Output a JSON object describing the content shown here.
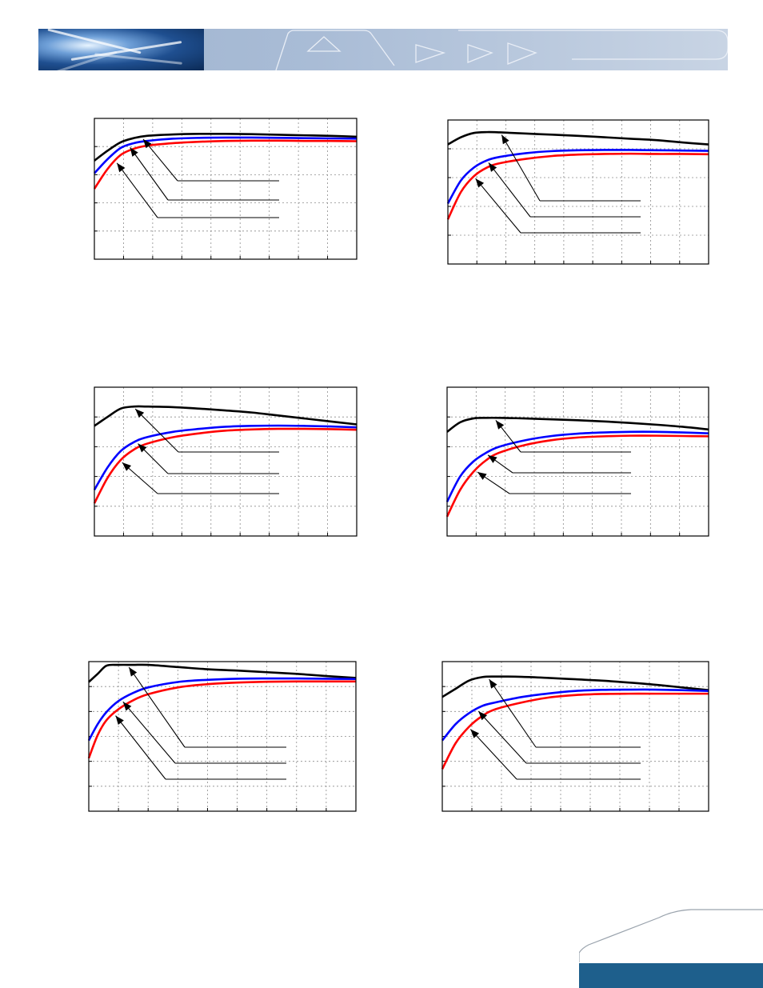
{
  "brand": {
    "accent": "#1e5f8c",
    "banner": "#a9bcd6"
  },
  "series_colors": {
    "black": "#000000",
    "blue": "#0000ff",
    "red": "#ff0000"
  },
  "chart_data": [
    {
      "type": "line",
      "xlim": [
        0,
        10
      ],
      "ylim": [
        0,
        5
      ],
      "grid": true,
      "series": [
        {
          "name": "black",
          "color": "#000000",
          "x": [
            0,
            0.5,
            1,
            1.5,
            2,
            3,
            4,
            5,
            6,
            7,
            8,
            9,
            10
          ],
          "y": [
            3.5,
            3.85,
            4.15,
            4.3,
            4.38,
            4.43,
            4.45,
            4.45,
            4.44,
            4.42,
            4.4,
            4.38,
            4.35
          ]
        },
        {
          "name": "blue",
          "color": "#0000ff",
          "x": [
            0,
            0.5,
            1,
            1.5,
            2,
            3,
            4,
            5,
            6,
            7,
            8,
            9,
            10
          ],
          "y": [
            3.05,
            3.55,
            3.95,
            4.12,
            4.2,
            4.28,
            4.31,
            4.32,
            4.32,
            4.31,
            4.3,
            4.29,
            4.28
          ]
        },
        {
          "name": "red",
          "color": "#ff0000",
          "x": [
            0,
            0.5,
            1,
            1.5,
            2,
            3,
            4,
            5,
            6,
            7,
            8,
            9,
            10
          ],
          "y": [
            2.5,
            3.2,
            3.7,
            3.92,
            4.03,
            4.12,
            4.17,
            4.2,
            4.21,
            4.21,
            4.2,
            4.2,
            4.19
          ]
        }
      ]
    },
    {
      "type": "line",
      "xlim": [
        0,
        10
      ],
      "ylim": [
        0,
        5
      ],
      "grid": true,
      "series": [
        {
          "name": "black",
          "color": "#000000",
          "x": [
            0,
            0.5,
            1,
            1.5,
            2,
            3,
            4,
            5,
            6,
            7,
            8,
            9,
            10
          ],
          "y": [
            4.15,
            4.4,
            4.55,
            4.58,
            4.57,
            4.53,
            4.49,
            4.45,
            4.4,
            4.35,
            4.3,
            4.22,
            4.15
          ]
        },
        {
          "name": "blue",
          "color": "#0000ff",
          "x": [
            0,
            0.5,
            1,
            1.5,
            2,
            3,
            4,
            5,
            6,
            7,
            8,
            9,
            10
          ],
          "y": [
            2.1,
            2.9,
            3.35,
            3.6,
            3.72,
            3.85,
            3.92,
            3.95,
            3.96,
            3.96,
            3.95,
            3.94,
            3.93
          ]
        },
        {
          "name": "red",
          "color": "#ff0000",
          "x": [
            0,
            0.5,
            1,
            1.5,
            2,
            3,
            4,
            5,
            6,
            7,
            8,
            9,
            10
          ],
          "y": [
            1.55,
            2.5,
            3.05,
            3.35,
            3.5,
            3.65,
            3.75,
            3.8,
            3.82,
            3.83,
            3.82,
            3.82,
            3.81
          ]
        }
      ]
    },
    {
      "type": "line",
      "xlim": [
        0,
        10
      ],
      "ylim": [
        0,
        5
      ],
      "grid": true,
      "series": [
        {
          "name": "black",
          "color": "#000000",
          "x": [
            0,
            0.5,
            1,
            1.5,
            2,
            3,
            4,
            5,
            6,
            7,
            8,
            9,
            10
          ],
          "y": [
            3.7,
            4.0,
            4.28,
            4.35,
            4.35,
            4.33,
            4.28,
            4.22,
            4.15,
            4.05,
            3.95,
            3.85,
            3.75
          ]
        },
        {
          "name": "blue",
          "color": "#0000ff",
          "x": [
            0,
            0.5,
            1,
            1.5,
            2,
            3,
            4,
            5,
            6,
            7,
            8,
            9,
            10
          ],
          "y": [
            1.55,
            2.3,
            2.85,
            3.15,
            3.32,
            3.5,
            3.6,
            3.67,
            3.7,
            3.71,
            3.7,
            3.68,
            3.65
          ]
        },
        {
          "name": "red",
          "color": "#ff0000",
          "x": [
            0,
            0.5,
            1,
            1.5,
            2,
            3,
            4,
            5,
            6,
            7,
            8,
            9,
            10
          ],
          "y": [
            1.1,
            1.95,
            2.55,
            2.9,
            3.1,
            3.32,
            3.45,
            3.54,
            3.58,
            3.6,
            3.6,
            3.59,
            3.57
          ]
        }
      ]
    },
    {
      "type": "line",
      "xlim": [
        0,
        10
      ],
      "ylim": [
        0,
        5
      ],
      "grid": true,
      "series": [
        {
          "name": "black",
          "color": "#000000",
          "x": [
            0,
            0.5,
            1,
            1.5,
            2,
            3,
            4,
            5,
            6,
            7,
            8,
            9,
            10
          ],
          "y": [
            3.5,
            3.82,
            3.95,
            3.97,
            3.97,
            3.95,
            3.92,
            3.89,
            3.85,
            3.8,
            3.74,
            3.67,
            3.58
          ]
        },
        {
          "name": "blue",
          "color": "#0000ff",
          "x": [
            0,
            0.5,
            1,
            1.5,
            2,
            3,
            4,
            5,
            6,
            7,
            8,
            9,
            10
          ],
          "y": [
            1.15,
            2.0,
            2.5,
            2.8,
            3.0,
            3.22,
            3.36,
            3.44,
            3.48,
            3.5,
            3.5,
            3.48,
            3.45
          ]
        },
        {
          "name": "red",
          "color": "#ff0000",
          "x": [
            0,
            0.5,
            1,
            1.5,
            2,
            3,
            4,
            5,
            6,
            7,
            8,
            9,
            10
          ],
          "y": [
            0.65,
            1.55,
            2.15,
            2.55,
            2.8,
            3.06,
            3.22,
            3.31,
            3.35,
            3.37,
            3.37,
            3.36,
            3.35
          ]
        }
      ]
    },
    {
      "type": "line",
      "xlim": [
        0,
        9
      ],
      "ylim": [
        0,
        5.5
      ],
      "grid": true,
      "series": [
        {
          "name": "black",
          "color": "#000000",
          "x": [
            0,
            0.3,
            0.6,
            1.0,
            1.5,
            2,
            3,
            4,
            5,
            6,
            7,
            8,
            9
          ],
          "y": [
            4.75,
            5.05,
            5.35,
            5.38,
            5.38,
            5.38,
            5.3,
            5.22,
            5.17,
            5.11,
            5.05,
            4.97,
            4.9
          ]
        },
        {
          "name": "blue",
          "color": "#0000ff",
          "x": [
            0,
            0.3,
            0.6,
            1.0,
            1.5,
            2,
            3,
            4,
            5,
            6,
            7,
            8,
            9
          ],
          "y": [
            2.6,
            3.2,
            3.65,
            4.05,
            4.35,
            4.55,
            4.75,
            4.83,
            4.87,
            4.88,
            4.88,
            4.87,
            4.86
          ]
        },
        {
          "name": "red",
          "color": "#ff0000",
          "x": [
            0,
            0.3,
            0.6,
            1.0,
            1.5,
            2,
            3,
            4,
            5,
            6,
            7,
            8,
            9
          ],
          "y": [
            1.95,
            2.8,
            3.35,
            3.75,
            4.08,
            4.3,
            4.55,
            4.67,
            4.73,
            4.76,
            4.77,
            4.77,
            4.77
          ]
        }
      ]
    },
    {
      "type": "line",
      "xlim": [
        0,
        10
      ],
      "ylim": [
        0,
        5.5
      ],
      "grid": true,
      "series": [
        {
          "name": "black",
          "color": "#000000",
          "x": [
            0,
            0.5,
            1,
            1.5,
            2,
            3,
            4,
            5,
            6,
            7,
            8,
            9,
            10
          ],
          "y": [
            4.2,
            4.5,
            4.8,
            4.93,
            4.95,
            4.94,
            4.9,
            4.85,
            4.8,
            4.73,
            4.65,
            4.55,
            4.45
          ]
        },
        {
          "name": "blue",
          "color": "#0000ff",
          "x": [
            0,
            0.5,
            1,
            1.5,
            2,
            3,
            4,
            5,
            6,
            7,
            8,
            9,
            10
          ],
          "y": [
            2.6,
            3.2,
            3.6,
            3.87,
            4.0,
            4.2,
            4.33,
            4.42,
            4.46,
            4.47,
            4.47,
            4.45,
            4.42
          ]
        },
        {
          "name": "red",
          "color": "#ff0000",
          "x": [
            0,
            0.5,
            1,
            1.5,
            2,
            3,
            4,
            5,
            6,
            7,
            8,
            9,
            10
          ],
          "y": [
            1.55,
            2.5,
            3.1,
            3.5,
            3.75,
            4.0,
            4.18,
            4.27,
            4.31,
            4.32,
            4.32,
            4.32,
            4.32
          ]
        }
      ]
    }
  ]
}
